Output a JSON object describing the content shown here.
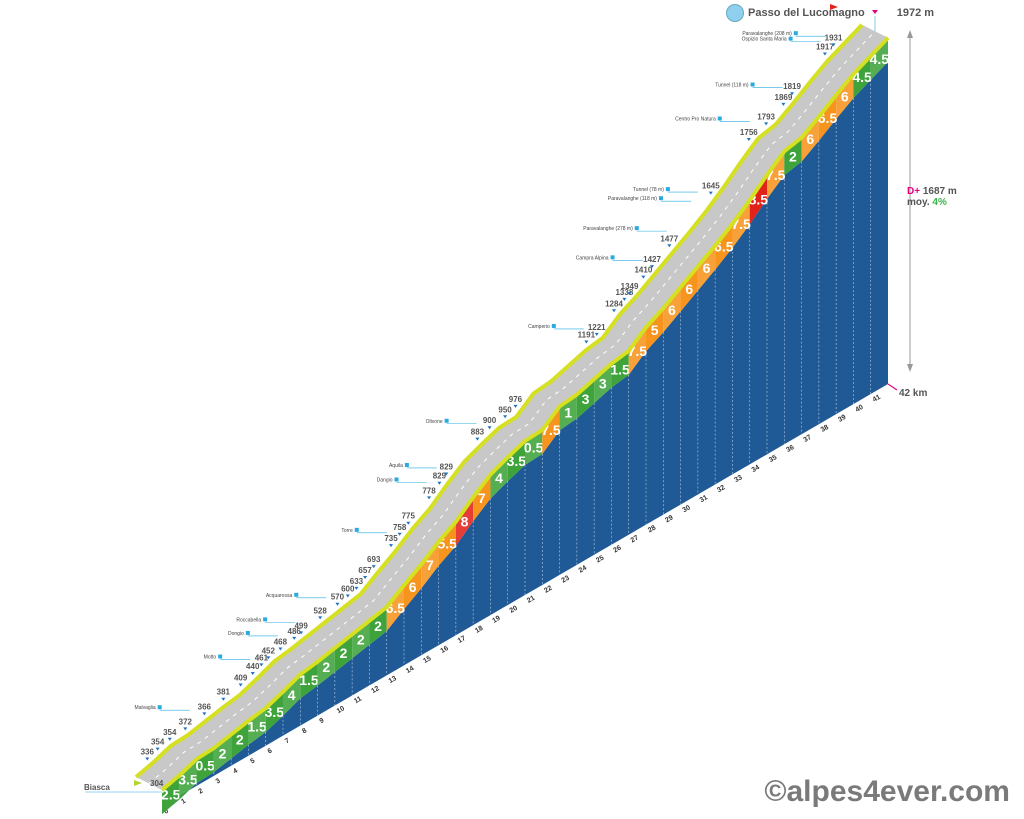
{
  "title": {
    "name": "Passo del Lucomagno",
    "summit": "1972 m"
  },
  "start": {
    "name": "Biasca",
    "elevation": "304"
  },
  "stats": {
    "gain_prefix": "D+",
    "gain": "1687 m",
    "avg_prefix": "moy.",
    "avg": "4%",
    "distance": "42 km"
  },
  "credit": "©alpes4ever.com",
  "colors": {
    "road": "#c8c8c8",
    "edge": "#d4e021",
    "side": "#1f5a96",
    "easy": "#3da33a",
    "medium": "#f7941d",
    "hard": "#e2231a",
    "summit_flag": "#e6007e"
  },
  "chart_data": {
    "type": "elevation-profile",
    "distance_km": 42,
    "start_elevation": 304,
    "summit_elevation": 1972,
    "km_ticks": [
      "0",
      "1",
      "2",
      "3",
      "4",
      "5",
      "6",
      "7",
      "8",
      "9",
      "10",
      "11",
      "12",
      "13",
      "14",
      "15",
      "16",
      "17",
      "18",
      "19",
      "20",
      "21",
      "22",
      "23",
      "24",
      "25",
      "26",
      "27",
      "28",
      "29",
      "30",
      "31",
      "32",
      "33",
      "34",
      "35",
      "36",
      "37",
      "38",
      "39",
      "40",
      "41"
    ],
    "gradients": [
      2.5,
      3.5,
      0.5,
      2,
      2,
      1.5,
      3.5,
      4,
      1.5,
      2,
      2,
      2,
      2,
      6.5,
      6,
      7,
      5.5,
      8,
      7,
      4,
      3.5,
      0.5,
      7.5,
      1,
      3,
      3,
      1.5,
      7.5,
      5,
      6,
      6,
      6,
      6.5,
      7.5,
      8.5,
      7.5,
      2,
      6,
      6.5,
      6,
      4.5,
      4.5
    ],
    "gradient_labels": [
      "2.5",
      "3.5",
      "0.5",
      "2",
      "2",
      "1.5",
      "3.5",
      "4",
      "1.5",
      "2",
      "2",
      "2",
      "2",
      "6.5",
      "6",
      "7",
      "5.5",
      "8",
      "7",
      "4",
      "3.5",
      "0.5",
      "7.5",
      "1",
      "3",
      "3",
      "1.5",
      "7.5",
      "5",
      "6",
      "6",
      "6",
      "6.5",
      "7.5",
      "8.5",
      "7.5",
      "2",
      "6",
      "6.5",
      "6",
      "4.5",
      "4.5"
    ],
    "elevation_labels": [
      {
        "km": 1,
        "value": "336"
      },
      {
        "km": 1.6,
        "value": "354"
      },
      {
        "km": 2.3,
        "value": "354"
      },
      {
        "km": 3.2,
        "value": "372"
      },
      {
        "km": 4.3,
        "value": "366"
      },
      {
        "km": 5.4,
        "value": "381"
      },
      {
        "km": 6.4,
        "value": "409"
      },
      {
        "km": 7.1,
        "value": "440"
      },
      {
        "km": 7.6,
        "value": "461"
      },
      {
        "km": 8.0,
        "value": "452"
      },
      {
        "km": 8.7,
        "value": "468"
      },
      {
        "km": 9.5,
        "value": "486"
      },
      {
        "km": 9.9,
        "value": "499"
      },
      {
        "km": 11,
        "value": "528"
      },
      {
        "km": 12,
        "value": "570"
      },
      {
        "km": 12.6,
        "value": "600"
      },
      {
        "km": 13.1,
        "value": "633"
      },
      {
        "km": 13.6,
        "value": "657"
      },
      {
        "km": 14.1,
        "value": "693"
      },
      {
        "km": 15.1,
        "value": "735"
      },
      {
        "km": 15.6,
        "value": "758"
      },
      {
        "km": 16.1,
        "value": "775"
      },
      {
        "km": 17.3,
        "value": "778"
      },
      {
        "km": 17.9,
        "value": "829"
      },
      {
        "km": 18.3,
        "value": "829"
      },
      {
        "km": 20.1,
        "value": "883"
      },
      {
        "km": 20.8,
        "value": "900"
      },
      {
        "km": 21.7,
        "value": "950"
      },
      {
        "km": 22.3,
        "value": "976"
      },
      {
        "km": 26.4,
        "value": "1191"
      },
      {
        "km": 27,
        "value": "1221"
      },
      {
        "km": 28,
        "value": "1284"
      },
      {
        "km": 28.6,
        "value": "1338"
      },
      {
        "km": 28.9,
        "value": "1349"
      },
      {
        "km": 29.7,
        "value": "1410"
      },
      {
        "km": 30.2,
        "value": "1427"
      },
      {
        "km": 31.2,
        "value": "1477"
      },
      {
        "km": 33.6,
        "value": "1645"
      },
      {
        "km": 35.8,
        "value": "1756"
      },
      {
        "km": 36.8,
        "value": "1793"
      },
      {
        "km": 37.8,
        "value": "1869"
      },
      {
        "km": 38.3,
        "value": "1819"
      },
      {
        "km": 40.2,
        "value": "1917"
      },
      {
        "km": 40.7,
        "value": "1931"
      }
    ],
    "places": [
      {
        "km": 3.8,
        "name": "Malvaglia"
      },
      {
        "km": 7.3,
        "name": "Motto"
      },
      {
        "km": 8.9,
        "name": "Dongio"
      },
      {
        "km": 9.9,
        "name": "Roccabella"
      },
      {
        "km": 11.7,
        "name": "Acquarossa"
      },
      {
        "km": 15.2,
        "name": "Torre"
      },
      {
        "km": 17.5,
        "name": "Dangio"
      },
      {
        "km": 18.1,
        "name": "Aquila"
      },
      {
        "km": 20.4,
        "name": "Olivone"
      },
      {
        "km": 26.6,
        "name": "Camperio"
      },
      {
        "km": 30.0,
        "name": "Campra Alpina"
      },
      {
        "km": 31.4,
        "name": "Paravalanghe (278 m)"
      },
      {
        "km": 32.8,
        "name": "Paravalanghe (118 m)"
      },
      {
        "km": 33.2,
        "name": "Tunnel (78 m)"
      },
      {
        "km": 36.2,
        "name": "Centro Pro Natura"
      },
      {
        "km": 38.1,
        "name": "Tunnel (118 m)"
      },
      {
        "km": 40.3,
        "name": "Ospizio Santa Maria"
      },
      {
        "km": 40.6,
        "name": "Paravalanghe (208 m)"
      }
    ]
  }
}
